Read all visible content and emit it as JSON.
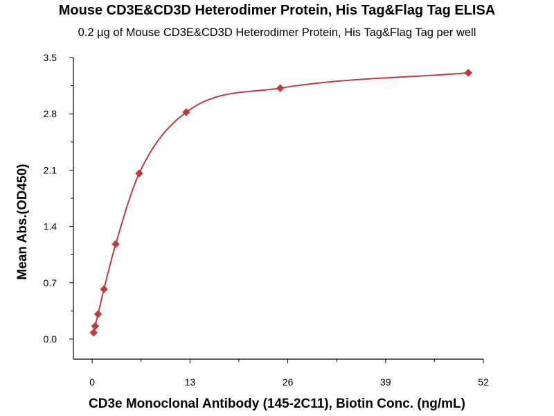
{
  "chart_data": {
    "type": "scatter",
    "title": "Mouse CD3E&CD3D Heterodimer Protein, His Tag&Flag Tag ELISA",
    "subtitle": "0.2 µg of Mouse CD3E&CD3D Heterodimer Protein, His Tag&Flag Tag per well",
    "xlabel": "CD3e Monoclonal Antibody (145-2C11), Biotin Conc. (ng/mL)",
    "ylabel": "Mean Abs.(OD450)",
    "xlim": [
      -2.5,
      52
    ],
    "ylim": [
      -0.25,
      3.5
    ],
    "xticks": [
      "0",
      "13",
      "26",
      "39",
      "52"
    ],
    "yticks": [
      "0.0",
      "0.7",
      "1.4",
      "2.1",
      "2.8",
      "3.5"
    ],
    "grid": false,
    "legend": "none",
    "color": "#c0393b",
    "series": [
      {
        "x": [
          0.195,
          0.391,
          0.781,
          1.563,
          3.125,
          6.25,
          12.5,
          25,
          50
        ],
        "y": [
          0.08,
          0.16,
          0.31,
          0.62,
          1.18,
          2.06,
          2.82,
          3.12,
          3.31
        ]
      }
    ]
  }
}
